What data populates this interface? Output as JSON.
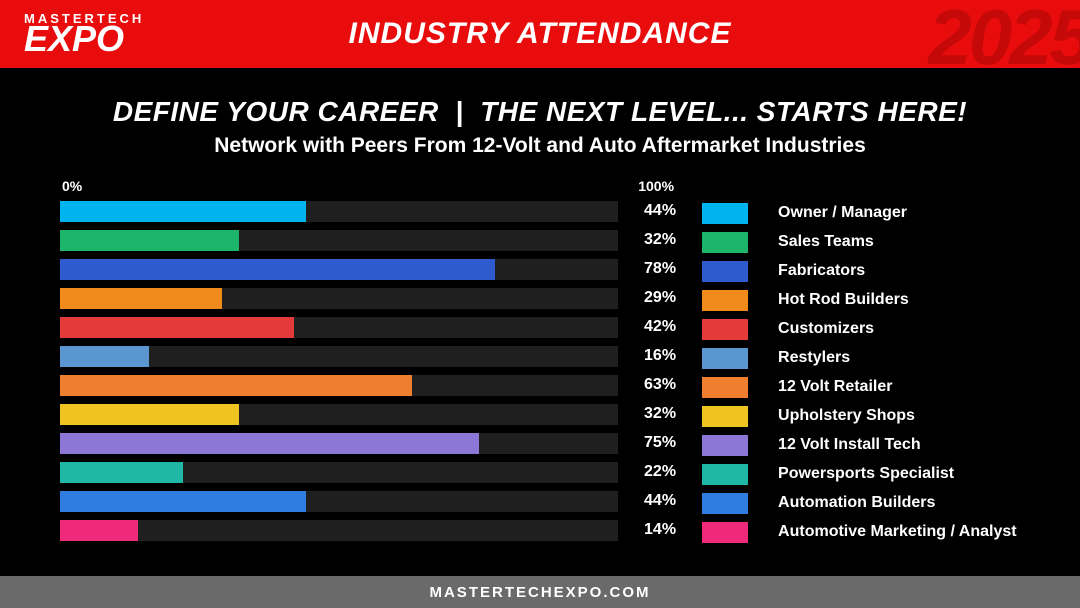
{
  "header": {
    "logo_top": "MASTERTECH",
    "logo_bottom": "EXPO",
    "title": "INDUSTRY ATTENDANCE",
    "year": "2025",
    "bg_color": "#e80c0c"
  },
  "headline": {
    "left": "DEFINE YOUR CAREER",
    "sep": "|",
    "right": "THE NEXT LEVEL... STARTS HERE!"
  },
  "subhead": "Network with Peers From 12-Volt and Auto Aftermarket Industries",
  "chart": {
    "type": "bar",
    "axis_min_label": "0%",
    "axis_max_label": "100%",
    "max_value": 100,
    "track_color": "#1f1f1f",
    "items": [
      {
        "label": "Owner / Manager",
        "value": 44,
        "display": "44%",
        "color": "#00b4f0"
      },
      {
        "label": "Sales Teams",
        "value": 32,
        "display": "32%",
        "color": "#1db56a"
      },
      {
        "label": "Fabricators",
        "value": 78,
        "display": "78%",
        "color": "#2e5cce"
      },
      {
        "label": "Hot Rod Builders",
        "value": 29,
        "display": "29%",
        "color": "#f08a1a"
      },
      {
        "label": "Customizers",
        "value": 42,
        "display": "42%",
        "color": "#e43a3a"
      },
      {
        "label": "Restylers",
        "value": 16,
        "display": "16%",
        "color": "#5a97d1"
      },
      {
        "label": "12 Volt Retailer",
        "value": 63,
        "display": "63%",
        "color": "#ef7f2f"
      },
      {
        "label": "Upholstery Shops",
        "value": 32,
        "display": "32%",
        "color": "#efc320"
      },
      {
        "label": "12 Volt Install Tech",
        "value": 75,
        "display": "75%",
        "color": "#8c76d6"
      },
      {
        "label": "Powersports Specialist",
        "value": 22,
        "display": "22%",
        "color": "#1fb7a6"
      },
      {
        "label": "Automation Builders",
        "value": 44,
        "display": "44%",
        "color": "#2f7de0"
      },
      {
        "label": "Automotive Marketing / Analyst",
        "value": 14,
        "display": "14%",
        "color": "#ef2a7a"
      }
    ]
  },
  "footer": {
    "text": "MASTERTECHEXPO.COM",
    "bg_color": "#6a6a6a"
  },
  "colors": {
    "page_bg": "#000000",
    "text": "#ffffff"
  }
}
